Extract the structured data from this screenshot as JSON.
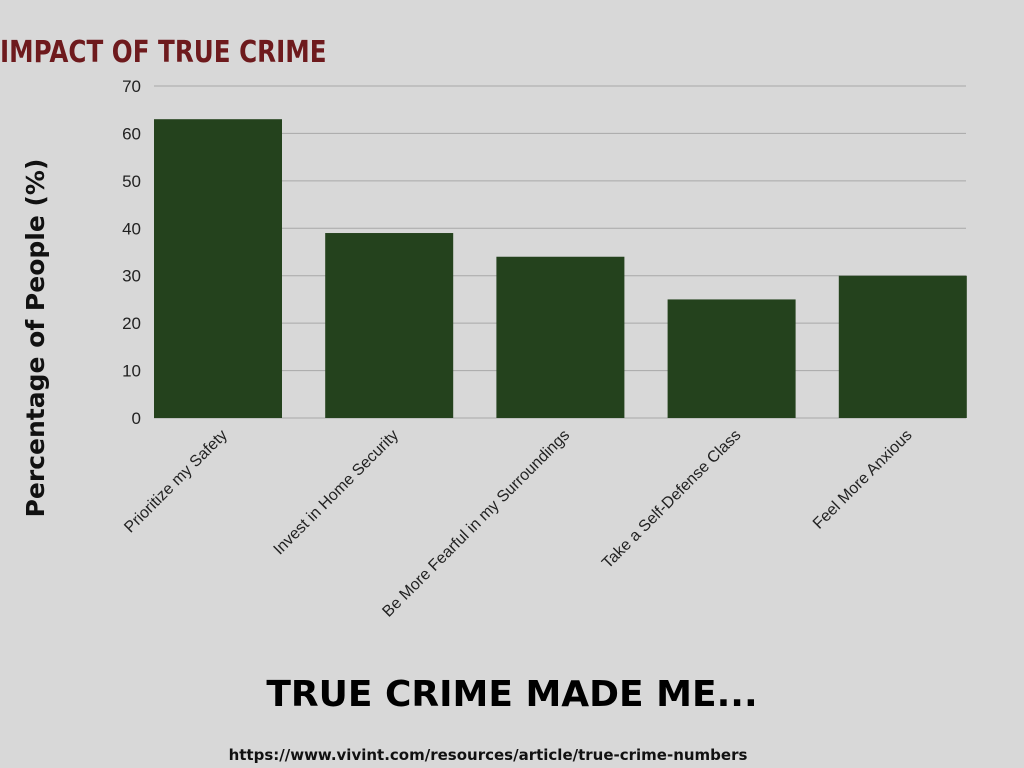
{
  "chart_data": {
    "type": "bar",
    "title": "IMPACT OF TRUE CRIME",
    "xlabel": "TRUE CRIME MADE ME...",
    "ylabel": "Percentage of People (%)",
    "categories": [
      "Prioritize my Safety",
      "Invest in Home Security",
      "Be More Fearful in my Surroundings",
      "Take a Self-Defense Class",
      "Feel More Anxious"
    ],
    "values": [
      63,
      39,
      34,
      25,
      30
    ],
    "ylim": [
      0,
      70
    ],
    "yticks": [
      0,
      10,
      20,
      30,
      40,
      50,
      60,
      70
    ],
    "grid": true,
    "legend": "none",
    "bar_color": "#24421d",
    "title_color": "#6e1a1d",
    "background_color": "#d8d8d8"
  },
  "source": "https://www.vivint.com/resources/article/true-crime-numbers"
}
